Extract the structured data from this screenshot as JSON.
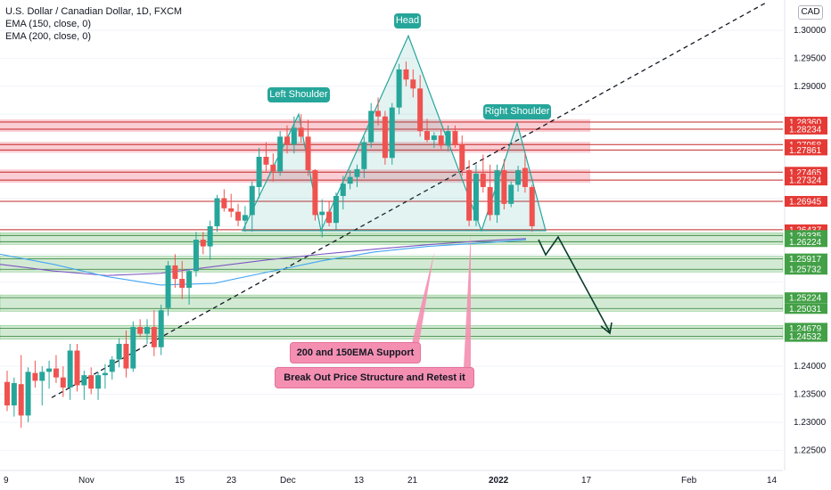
{
  "legend": {
    "title": "U.S. Dollar / Canadian Dollar, 1D, FXCM",
    "ema150": "EMA (150, close, 0)",
    "ema200": "EMA (200, close, 0)"
  },
  "currency": "CAD",
  "callouts": {
    "head": "Head",
    "left_shoulder": "Left Shoulder",
    "right_shoulder": "Right Shoulder",
    "ema_support": "200 and 150EMA Support",
    "breakout": "Break Out Price Structure and Retest it"
  },
  "colors": {
    "up": "#26a69a",
    "down": "#ef5350",
    "pink_zone": "#f8c6cc",
    "green_zone": "#c8e6c9",
    "red_label": "#e53935",
    "green_label": "#43a047",
    "pattern": "#26a69a",
    "ema150": "#7e57c2",
    "ema200": "#42a5f5"
  },
  "chart_data": {
    "type": "candlestick",
    "y_range": [
      1.2214,
      1.3054
    ],
    "price_axis_ticks": [
      "1.30000",
      "1.29500",
      "1.29000",
      "1.24000",
      "1.23500",
      "1.23000",
      "1.22500"
    ],
    "time_axis_ticks": [
      "9",
      "Nov",
      "15",
      "23",
      "Dec",
      "13",
      "21",
      "2022",
      "17",
      "Feb",
      "14"
    ],
    "resistance_levels": [
      "1.28360",
      "1.28234",
      "1.27958",
      "1.27861",
      "1.27465",
      "1.27324",
      "1.26945",
      "1.26437"
    ],
    "support_levels": [
      "1.26335",
      "1.26224",
      "1.25917",
      "1.25732",
      "1.25224",
      "1.25031",
      "1.24679",
      "1.24532"
    ],
    "pink_zones": [
      [
        1.28234,
        1.2836
      ],
      [
        1.27861,
        1.27958
      ],
      [
        1.27324,
        1.27465
      ]
    ],
    "green_zones": [
      [
        1.26224,
        1.26335
      ],
      [
        1.25732,
        1.25917
      ],
      [
        1.25031,
        1.25224
      ],
      [
        1.24532,
        1.24679
      ]
    ],
    "candles": [
      {
        "o": 1.2372,
        "h": 1.2392,
        "l": 1.232,
        "c": 1.233
      },
      {
        "o": 1.233,
        "h": 1.238,
        "l": 1.231,
        "c": 1.237
      },
      {
        "o": 1.2368,
        "h": 1.242,
        "l": 1.229,
        "c": 1.2312
      },
      {
        "o": 1.2312,
        "h": 1.2398,
        "l": 1.23,
        "c": 1.239
      },
      {
        "o": 1.2388,
        "h": 1.241,
        "l": 1.2362,
        "c": 1.2374
      },
      {
        "o": 1.2374,
        "h": 1.24,
        "l": 1.233,
        "c": 1.239
      },
      {
        "o": 1.239,
        "h": 1.241,
        "l": 1.236,
        "c": 1.2396
      },
      {
        "o": 1.2396,
        "h": 1.242,
        "l": 1.237,
        "c": 1.238
      },
      {
        "o": 1.238,
        "h": 1.24,
        "l": 1.2345,
        "c": 1.2362
      },
      {
        "o": 1.2362,
        "h": 1.244,
        "l": 1.234,
        "c": 1.2428
      },
      {
        "o": 1.2428,
        "h": 1.244,
        "l": 1.2355,
        "c": 1.2366
      },
      {
        "o": 1.2366,
        "h": 1.2392,
        "l": 1.234,
        "c": 1.2384
      },
      {
        "o": 1.2384,
        "h": 1.2398,
        "l": 1.235,
        "c": 1.236
      },
      {
        "o": 1.236,
        "h": 1.239,
        "l": 1.234,
        "c": 1.2384
      },
      {
        "o": 1.2384,
        "h": 1.2404,
        "l": 1.236,
        "c": 1.2388
      },
      {
        "o": 1.239,
        "h": 1.2418,
        "l": 1.2376,
        "c": 1.2412
      },
      {
        "o": 1.2412,
        "h": 1.245,
        "l": 1.2398,
        "c": 1.244
      },
      {
        "o": 1.244,
        "h": 1.2464,
        "l": 1.238,
        "c": 1.2396
      },
      {
        "o": 1.2396,
        "h": 1.248,
        "l": 1.239,
        "c": 1.247
      },
      {
        "o": 1.247,
        "h": 1.2484,
        "l": 1.2452,
        "c": 1.2458
      },
      {
        "o": 1.2458,
        "h": 1.2484,
        "l": 1.244,
        "c": 1.247
      },
      {
        "o": 1.247,
        "h": 1.25,
        "l": 1.2418,
        "c": 1.2434
      },
      {
        "o": 1.2434,
        "h": 1.251,
        "l": 1.242,
        "c": 1.25
      },
      {
        "o": 1.2504,
        "h": 1.2588,
        "l": 1.249,
        "c": 1.258
      },
      {
        "o": 1.258,
        "h": 1.26,
        "l": 1.254,
        "c": 1.2556
      },
      {
        "o": 1.2556,
        "h": 1.2588,
        "l": 1.252,
        "c": 1.254
      },
      {
        "o": 1.254,
        "h": 1.2574,
        "l": 1.251,
        "c": 1.257
      },
      {
        "o": 1.257,
        "h": 1.264,
        "l": 1.256,
        "c": 1.2626
      },
      {
        "o": 1.2626,
        "h": 1.264,
        "l": 1.26,
        "c": 1.2614
      },
      {
        "o": 1.2614,
        "h": 1.266,
        "l": 1.259,
        "c": 1.265
      },
      {
        "o": 1.265,
        "h": 1.2706,
        "l": 1.264,
        "c": 1.27
      },
      {
        "o": 1.27,
        "h": 1.2716,
        "l": 1.2676,
        "c": 1.2682
      },
      {
        "o": 1.2682,
        "h": 1.2708,
        "l": 1.2666,
        "c": 1.2676
      },
      {
        "o": 1.2676,
        "h": 1.269,
        "l": 1.265,
        "c": 1.266
      },
      {
        "o": 1.266,
        "h": 1.2686,
        "l": 1.264,
        "c": 1.267
      },
      {
        "o": 1.267,
        "h": 1.273,
        "l": 1.264,
        "c": 1.2722
      },
      {
        "o": 1.272,
        "h": 1.279,
        "l": 1.27,
        "c": 1.2774
      },
      {
        "o": 1.2774,
        "h": 1.28,
        "l": 1.2748,
        "c": 1.276
      },
      {
        "o": 1.276,
        "h": 1.278,
        "l": 1.273,
        "c": 1.2748
      },
      {
        "o": 1.2748,
        "h": 1.282,
        "l": 1.274,
        "c": 1.281
      },
      {
        "o": 1.281,
        "h": 1.283,
        "l": 1.278,
        "c": 1.2796
      },
      {
        "o": 1.2796,
        "h": 1.2846,
        "l": 1.278,
        "c": 1.2826
      },
      {
        "o": 1.2826,
        "h": 1.285,
        "l": 1.28,
        "c": 1.281
      },
      {
        "o": 1.281,
        "h": 1.284,
        "l": 1.274,
        "c": 1.275
      },
      {
        "o": 1.275,
        "h": 1.2752,
        "l": 1.266,
        "c": 1.267
      },
      {
        "o": 1.267,
        "h": 1.2698,
        "l": 1.263,
        "c": 1.2676
      },
      {
        "o": 1.2676,
        "h": 1.2694,
        "l": 1.265,
        "c": 1.2656
      },
      {
        "o": 1.2656,
        "h": 1.271,
        "l": 1.2644,
        "c": 1.2704
      },
      {
        "o": 1.2704,
        "h": 1.274,
        "l": 1.268,
        "c": 1.2726
      },
      {
        "o": 1.2726,
        "h": 1.275,
        "l": 1.2716,
        "c": 1.2738
      },
      {
        "o": 1.2738,
        "h": 1.276,
        "l": 1.272,
        "c": 1.2752
      },
      {
        "o": 1.2752,
        "h": 1.281,
        "l": 1.2736,
        "c": 1.28
      },
      {
        "o": 1.28,
        "h": 1.287,
        "l": 1.279,
        "c": 1.2856
      },
      {
        "o": 1.2856,
        "h": 1.288,
        "l": 1.283,
        "c": 1.2846
      },
      {
        "o": 1.2846,
        "h": 1.2856,
        "l": 1.276,
        "c": 1.2772
      },
      {
        "o": 1.2772,
        "h": 1.287,
        "l": 1.276,
        "c": 1.2862
      },
      {
        "o": 1.2862,
        "h": 1.294,
        "l": 1.285,
        "c": 1.293
      },
      {
        "o": 1.293,
        "h": 1.2944,
        "l": 1.29,
        "c": 1.2912
      },
      {
        "o": 1.2912,
        "h": 1.293,
        "l": 1.288,
        "c": 1.2896
      },
      {
        "o": 1.2896,
        "h": 1.292,
        "l": 1.281,
        "c": 1.282
      },
      {
        "o": 1.282,
        "h": 1.2842,
        "l": 1.28,
        "c": 1.2804
      },
      {
        "o": 1.2804,
        "h": 1.2818,
        "l": 1.279,
        "c": 1.2812
      },
      {
        "o": 1.2812,
        "h": 1.2824,
        "l": 1.2788,
        "c": 1.2794
      },
      {
        "o": 1.2794,
        "h": 1.283,
        "l": 1.2784,
        "c": 1.282
      },
      {
        "o": 1.282,
        "h": 1.283,
        "l": 1.279,
        "c": 1.2796
      },
      {
        "o": 1.2796,
        "h": 1.2812,
        "l": 1.274,
        "c": 1.275
      },
      {
        "o": 1.275,
        "h": 1.2768,
        "l": 1.265,
        "c": 1.266
      },
      {
        "o": 1.266,
        "h": 1.276,
        "l": 1.265,
        "c": 1.2744
      },
      {
        "o": 1.2744,
        "h": 1.2778,
        "l": 1.271,
        "c": 1.272
      },
      {
        "o": 1.272,
        "h": 1.276,
        "l": 1.266,
        "c": 1.267
      },
      {
        "o": 1.267,
        "h": 1.276,
        "l": 1.2656,
        "c": 1.275
      },
      {
        "o": 1.275,
        "h": 1.277,
        "l": 1.268,
        "c": 1.269
      },
      {
        "o": 1.269,
        "h": 1.273,
        "l": 1.2684,
        "c": 1.2724
      },
      {
        "o": 1.2724,
        "h": 1.2758,
        "l": 1.2712,
        "c": 1.275
      },
      {
        "o": 1.2754,
        "h": 1.278,
        "l": 1.271,
        "c": 1.272
      },
      {
        "o": 1.272,
        "h": 1.2724,
        "l": 1.264,
        "c": 1.265
      }
    ]
  }
}
